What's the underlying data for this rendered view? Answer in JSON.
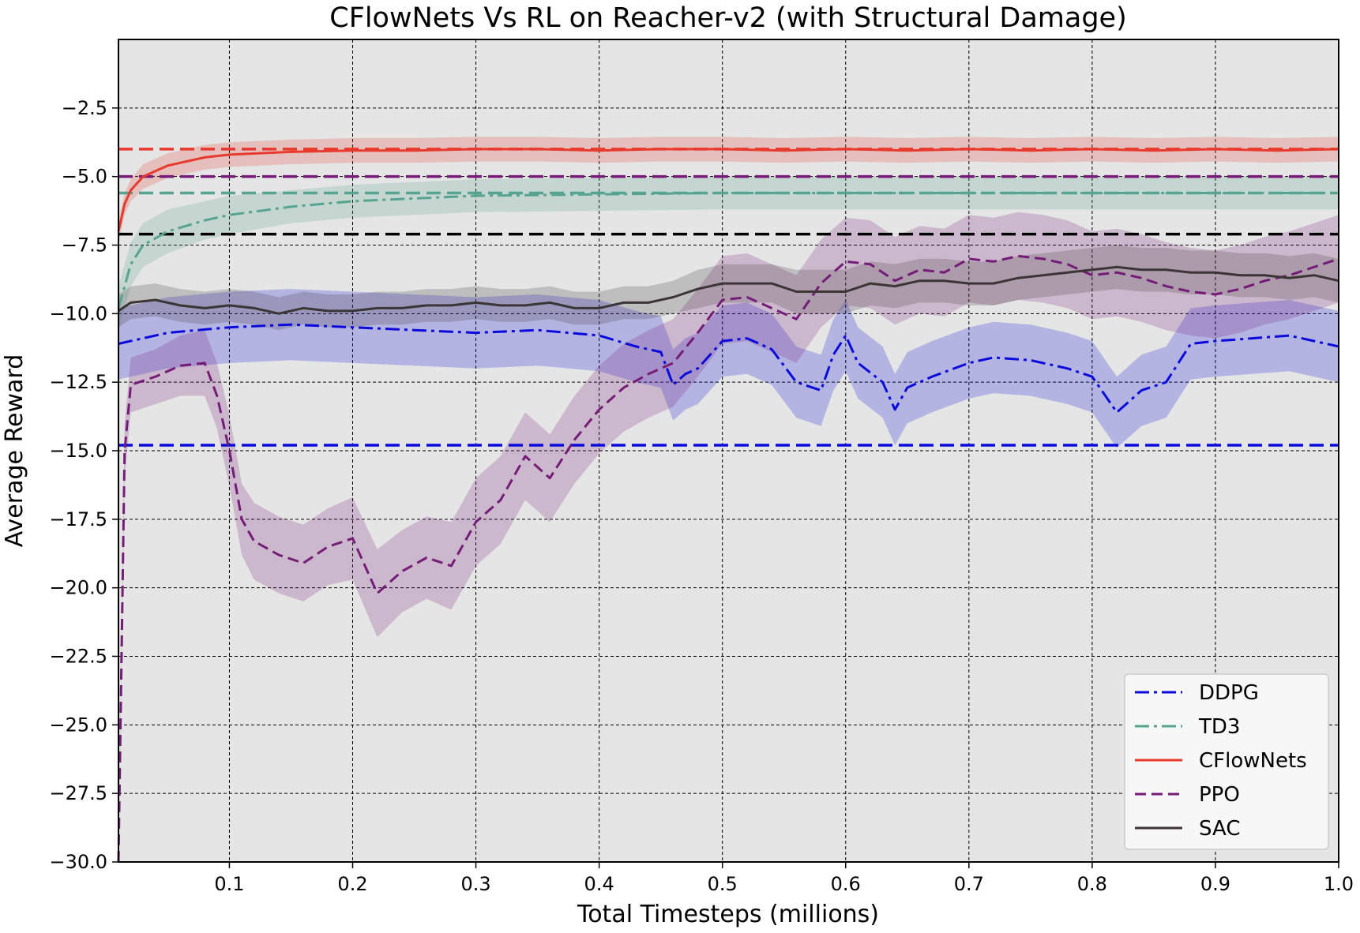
{
  "chart_data": {
    "type": "line",
    "title": "CFlowNets Vs RL on Reacher-v2 (with Structural Damage)",
    "xlabel": "Total Timesteps (millions)",
    "ylabel": "Average Reward",
    "xlim": [
      0.01,
      1.0
    ],
    "ylim": [
      -30.0,
      0.0
    ],
    "xticks": [
      0.1,
      0.2,
      0.3,
      0.4,
      0.5,
      0.6,
      0.7,
      0.8,
      0.9,
      1.0
    ],
    "xtick_labels": [
      "0.1",
      "0.2",
      "0.3",
      "0.4",
      "0.5",
      "0.6",
      "0.7",
      "0.8",
      "0.9",
      "1.0"
    ],
    "yticks": [
      -2.5,
      -5.0,
      -7.5,
      -10.0,
      -12.5,
      -15.0,
      -17.5,
      -20.0,
      -22.5,
      -25.0,
      -27.5,
      -30.0
    ],
    "ytick_labels": [
      "−2.5",
      "−5.0",
      "−7.5",
      "−10.0",
      "−12.5",
      "−15.0",
      "−17.5",
      "−20.0",
      "−22.5",
      "−25.0",
      "−27.5",
      "−30.0"
    ],
    "grid": true,
    "background": "#e5e5e5",
    "legend_position": "lower right",
    "series": [
      {
        "name": "DDPG",
        "color": "#0a0adc",
        "dash": "dashdot",
        "x": [
          0.01,
          0.05,
          0.1,
          0.15,
          0.2,
          0.25,
          0.3,
          0.35,
          0.4,
          0.43,
          0.45,
          0.46,
          0.47,
          0.48,
          0.5,
          0.52,
          0.54,
          0.56,
          0.58,
          0.59,
          0.6,
          0.61,
          0.63,
          0.64,
          0.65,
          0.67,
          0.7,
          0.72,
          0.75,
          0.78,
          0.8,
          0.82,
          0.84,
          0.86,
          0.88,
          0.9,
          0.93,
          0.96,
          1.0
        ],
        "y": [
          -11.1,
          -10.7,
          -10.5,
          -10.4,
          -10.5,
          -10.6,
          -10.7,
          -10.6,
          -10.8,
          -11.2,
          -11.4,
          -12.6,
          -12.2,
          -12.0,
          -11.0,
          -10.9,
          -11.3,
          -12.5,
          -12.8,
          -11.5,
          -10.8,
          -11.8,
          -12.5,
          -13.5,
          -12.7,
          -12.3,
          -11.8,
          -11.6,
          -11.7,
          -12.0,
          -12.3,
          -13.6,
          -12.8,
          -12.5,
          -11.1,
          -11.0,
          -10.9,
          -10.8,
          -11.2
        ],
        "band": [
          1.3,
          1.3,
          1.3,
          1.3,
          1.3,
          1.3,
          1.3,
          1.3,
          1.3,
          1.3,
          1.3,
          1.3,
          1.3,
          1.3,
          1.3,
          1.3,
          1.3,
          1.3,
          1.3,
          1.3,
          1.3,
          1.3,
          1.3,
          1.3,
          1.3,
          1.3,
          1.3,
          1.3,
          1.3,
          1.3,
          1.3,
          1.3,
          1.3,
          1.3,
          1.3,
          1.3,
          1.3,
          1.3,
          1.3
        ],
        "reference": -14.8
      },
      {
        "name": "TD3",
        "color": "#56a38f",
        "dash": "dashdot",
        "x": [
          0.01,
          0.02,
          0.03,
          0.05,
          0.08,
          0.1,
          0.15,
          0.2,
          0.3,
          0.4,
          0.5,
          0.6,
          0.7,
          0.8,
          0.9,
          1.0
        ],
        "y": [
          -9.8,
          -8.2,
          -7.5,
          -7.0,
          -6.6,
          -6.4,
          -6.1,
          -5.9,
          -5.7,
          -5.65,
          -5.6,
          -5.6,
          -5.6,
          -5.6,
          -5.6,
          -5.6
        ],
        "band": [
          0.8,
          0.8,
          0.8,
          0.8,
          0.7,
          0.7,
          0.6,
          0.6,
          0.6,
          0.6,
          0.6,
          0.6,
          0.6,
          0.6,
          0.6,
          0.6
        ],
        "reference": -5.6
      },
      {
        "name": "CFlowNets",
        "color": "#e8392d",
        "dash": "solid",
        "x": [
          0.01,
          0.015,
          0.02,
          0.03,
          0.05,
          0.08,
          0.1,
          0.15,
          0.2,
          0.25,
          0.3,
          0.35,
          0.4,
          0.45,
          0.5,
          0.55,
          0.6,
          0.65,
          0.7,
          0.75,
          0.8,
          0.85,
          0.9,
          0.95,
          1.0
        ],
        "y": [
          -7.0,
          -6.0,
          -5.5,
          -5.0,
          -4.6,
          -4.3,
          -4.2,
          -4.1,
          -4.05,
          -4.05,
          -4.0,
          -4.0,
          -4.05,
          -4.0,
          -4.0,
          -4.05,
          -4.0,
          -4.05,
          -4.0,
          -4.05,
          -4.0,
          -4.05,
          -4.0,
          -4.05,
          -4.0
        ],
        "band": [
          0.4,
          0.4,
          0.4,
          0.45,
          0.45,
          0.45,
          0.45,
          0.45,
          0.45,
          0.45,
          0.45,
          0.45,
          0.45,
          0.45,
          0.45,
          0.45,
          0.45,
          0.45,
          0.45,
          0.45,
          0.45,
          0.45,
          0.45,
          0.45,
          0.45
        ],
        "reference": -4.0
      },
      {
        "name": "PPO",
        "color": "#751b78",
        "dash": "dashed",
        "x": [
          0.01,
          0.015,
          0.02,
          0.04,
          0.06,
          0.08,
          0.09,
          0.1,
          0.11,
          0.12,
          0.14,
          0.16,
          0.18,
          0.2,
          0.22,
          0.24,
          0.26,
          0.28,
          0.3,
          0.32,
          0.34,
          0.36,
          0.38,
          0.4,
          0.42,
          0.44,
          0.46,
          0.48,
          0.5,
          0.52,
          0.54,
          0.56,
          0.58,
          0.6,
          0.62,
          0.64,
          0.66,
          0.68,
          0.7,
          0.72,
          0.74,
          0.76,
          0.78,
          0.8,
          0.82,
          0.84,
          0.86,
          0.88,
          0.9,
          0.92,
          0.94,
          0.96,
          0.98,
          1.0
        ],
        "y": [
          -30.0,
          -15.0,
          -12.6,
          -12.3,
          -11.9,
          -11.8,
          -13.0,
          -15.0,
          -17.5,
          -18.3,
          -18.8,
          -19.1,
          -18.5,
          -18.2,
          -20.2,
          -19.4,
          -18.9,
          -19.2,
          -17.6,
          -16.8,
          -15.2,
          -16.0,
          -14.6,
          -13.5,
          -12.7,
          -12.2,
          -11.8,
          -10.7,
          -9.5,
          -9.4,
          -9.8,
          -10.2,
          -8.9,
          -8.1,
          -8.2,
          -8.8,
          -8.4,
          -8.5,
          -8.0,
          -8.1,
          -7.9,
          -8.0,
          -8.2,
          -8.6,
          -8.5,
          -8.7,
          -9.0,
          -9.2,
          -9.3,
          -9.1,
          -8.8,
          -8.6,
          -8.3,
          -8.0
        ],
        "band": [
          0.2,
          1.0,
          1.0,
          1.0,
          1.1,
          1.2,
          1.2,
          1.3,
          1.3,
          1.4,
          1.4,
          1.4,
          1.4,
          1.5,
          1.6,
          1.5,
          1.5,
          1.6,
          1.6,
          1.6,
          1.6,
          1.6,
          1.6,
          1.6,
          1.6,
          1.6,
          1.6,
          1.6,
          1.6,
          1.6,
          1.6,
          1.6,
          1.6,
          1.6,
          1.6,
          1.6,
          1.6,
          1.6,
          1.6,
          1.6,
          1.6,
          1.6,
          1.6,
          1.6,
          1.6,
          1.6,
          1.6,
          1.6,
          1.6,
          1.6,
          1.6,
          1.6,
          1.6,
          1.6
        ]
      },
      {
        "name": "SAC",
        "color": "#3c3535",
        "dash": "solid",
        "x": [
          0.01,
          0.02,
          0.04,
          0.06,
          0.08,
          0.1,
          0.12,
          0.14,
          0.16,
          0.18,
          0.2,
          0.22,
          0.24,
          0.26,
          0.28,
          0.3,
          0.32,
          0.34,
          0.36,
          0.38,
          0.4,
          0.42,
          0.44,
          0.46,
          0.48,
          0.5,
          0.52,
          0.54,
          0.56,
          0.58,
          0.6,
          0.62,
          0.64,
          0.66,
          0.68,
          0.7,
          0.72,
          0.74,
          0.76,
          0.78,
          0.8,
          0.82,
          0.84,
          0.86,
          0.88,
          0.9,
          0.92,
          0.94,
          0.96,
          0.98,
          1.0
        ],
        "y": [
          -9.9,
          -9.6,
          -9.5,
          -9.7,
          -9.8,
          -9.7,
          -9.8,
          -10.0,
          -9.8,
          -9.9,
          -9.9,
          -9.8,
          -9.8,
          -9.7,
          -9.7,
          -9.6,
          -9.7,
          -9.7,
          -9.6,
          -9.8,
          -9.8,
          -9.6,
          -9.6,
          -9.4,
          -9.1,
          -8.9,
          -8.9,
          -8.9,
          -9.2,
          -9.2,
          -9.2,
          -8.9,
          -9.0,
          -8.8,
          -8.8,
          -8.9,
          -8.9,
          -8.7,
          -8.6,
          -8.5,
          -8.4,
          -8.3,
          -8.4,
          -8.4,
          -8.5,
          -8.5,
          -8.6,
          -8.6,
          -8.7,
          -8.6,
          -8.8
        ],
        "band": [
          0.6,
          0.6,
          0.6,
          0.6,
          0.6,
          0.6,
          0.6,
          0.6,
          0.6,
          0.6,
          0.6,
          0.6,
          0.6,
          0.6,
          0.6,
          0.6,
          0.6,
          0.6,
          0.6,
          0.6,
          0.6,
          0.6,
          0.6,
          0.6,
          0.7,
          0.7,
          0.7,
          0.7,
          0.8,
          0.8,
          0.8,
          0.8,
          0.8,
          0.8,
          0.8,
          0.8,
          0.8,
          0.8,
          0.8,
          0.8,
          0.8,
          0.8,
          0.8,
          0.8,
          0.8,
          0.8,
          0.8,
          0.8,
          0.8,
          0.8,
          0.8
        ]
      }
    ],
    "reference_lines": [
      {
        "y": -4.0,
        "color": "#e8392d",
        "dash": "dashed"
      },
      {
        "y": -5.0,
        "color": "#751b78",
        "dash": "dashed"
      },
      {
        "y": -5.6,
        "color": "#56a38f",
        "dash": "dashed"
      },
      {
        "y": -7.1,
        "color": "#000000",
        "dash": "dashed"
      },
      {
        "y": -14.8,
        "color": "#0a0adc",
        "dash": "dashed"
      }
    ]
  }
}
